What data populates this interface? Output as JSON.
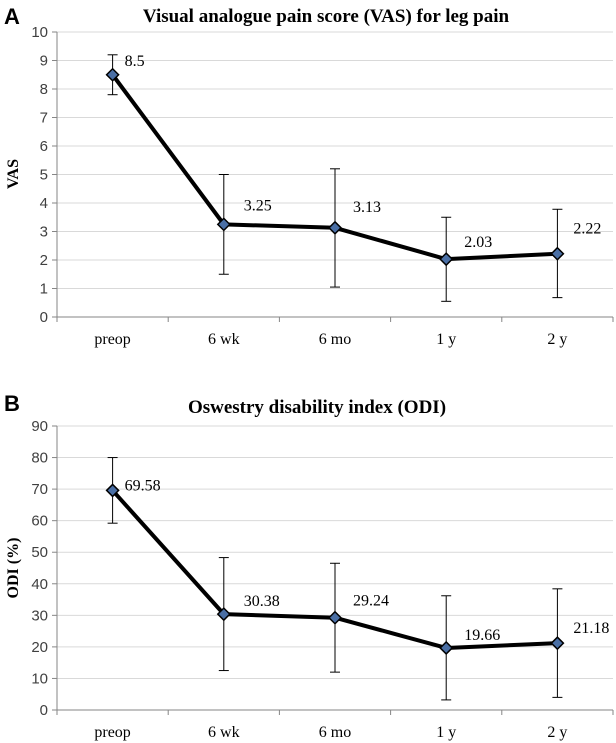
{
  "chart_data": [
    {
      "panel": "A",
      "type": "line",
      "title": "Visual analogue pain score (VAS) for leg pain",
      "xlabel": "",
      "ylabel": "VAS",
      "categories": [
        "preop",
        "6 wk",
        "6 mo",
        "1 y",
        "2 y"
      ],
      "values": [
        8.5,
        3.25,
        3.13,
        2.03,
        2.22
      ],
      "value_labels": [
        "8.5",
        "3.25",
        "3.13",
        "2.03",
        "2.22"
      ],
      "error_low": [
        7.8,
        1.5,
        1.05,
        0.55,
        0.68
      ],
      "error_high": [
        9.2,
        5.0,
        5.2,
        3.5,
        3.78
      ],
      "ylim": [
        0,
        10
      ],
      "yticks": [
        0,
        1,
        2,
        3,
        4,
        5,
        6,
        7,
        8,
        9,
        10
      ],
      "grid": true,
      "legend": "none"
    },
    {
      "panel": "B",
      "type": "line",
      "title": "Oswestry disability index (ODI)",
      "xlabel": "",
      "ylabel": "ODI (%)",
      "categories": [
        "preop",
        "6 wk",
        "6 mo",
        "1 y",
        "2 y"
      ],
      "values": [
        69.58,
        30.38,
        29.24,
        19.66,
        21.18
      ],
      "value_labels": [
        "69.58",
        "30.38",
        "29.24",
        "19.66",
        "21.18"
      ],
      "error_low": [
        59.2,
        12.5,
        12.0,
        3.2,
        4.0
      ],
      "error_high": [
        80.0,
        48.3,
        46.5,
        36.2,
        38.4
      ],
      "ylim": [
        0,
        90
      ],
      "yticks": [
        0,
        10,
        20,
        30,
        40,
        50,
        60,
        70,
        80,
        90
      ],
      "grid": true,
      "legend": "none"
    }
  ]
}
